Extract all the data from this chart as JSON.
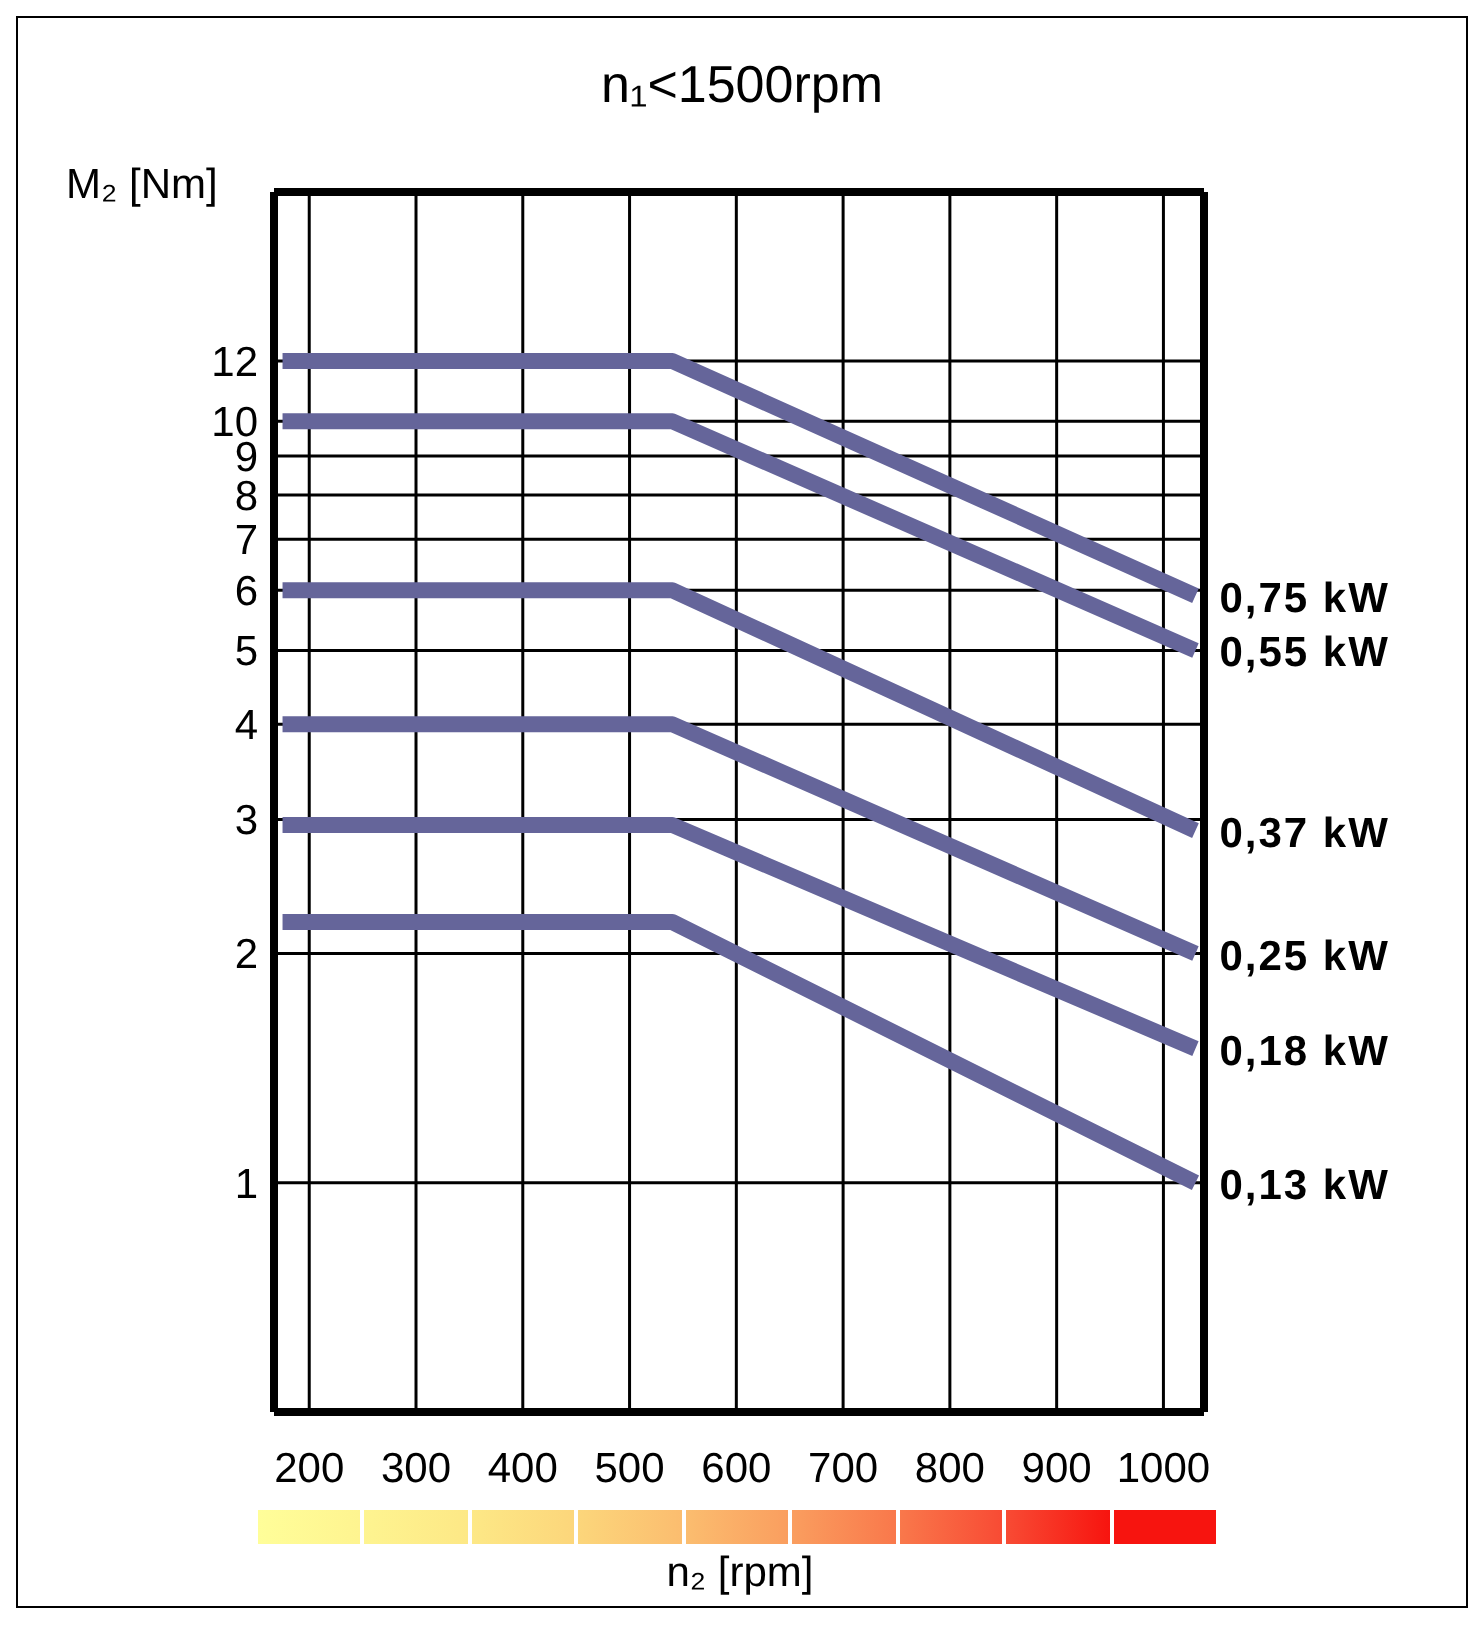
{
  "chart_data": {
    "type": "line",
    "title": "n₁<1500rpm",
    "xlabel": "n₂ [rpm]",
    "ylabel": "M₂ [Nm]",
    "x": [
      175,
      540,
      1030
    ],
    "series": [
      {
        "name": "0,75 kW",
        "color": "#65659a",
        "values": [
          12,
          12,
          5.9
        ]
      },
      {
        "name": "0,55 kW",
        "color": "#65659a",
        "values": [
          10,
          10,
          5
        ]
      },
      {
        "name": "0,37 kW",
        "color": "#65659a",
        "values": [
          6,
          6,
          2.9
        ]
      },
      {
        "name": "0,25 kW",
        "color": "#65659a",
        "values": [
          4,
          4,
          2
        ]
      },
      {
        "name": "0,18 kW",
        "color": "#65659a",
        "values": [
          2.95,
          2.95,
          1.5
        ]
      },
      {
        "name": "0,13 kW",
        "color": "#65659a",
        "values": [
          2.2,
          2.2,
          1
        ]
      }
    ],
    "xlim": [
      167,
      1038
    ],
    "xticks": [
      200,
      300,
      400,
      500,
      600,
      700,
      800,
      900,
      1000
    ],
    "ylim": [
      0.5,
      20
    ],
    "yticks": [
      1,
      2,
      3,
      4,
      5,
      6,
      7,
      8,
      9,
      10,
      12
    ],
    "log": "y",
    "grid": true,
    "marker": "none",
    "line_style": "solid"
  }
}
